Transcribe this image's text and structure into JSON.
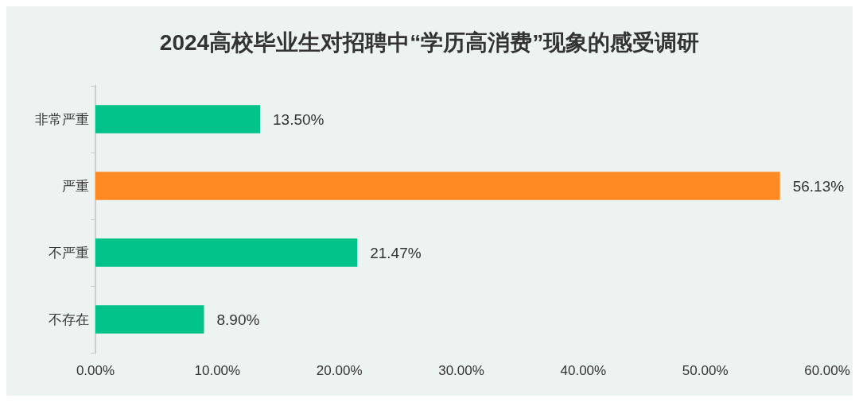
{
  "chart_data": {
    "type": "bar",
    "orientation": "horizontal",
    "title": "2024高校毕业生对招聘中“学历高消费”现象的感受调研",
    "categories": [
      "非常严重",
      "严重",
      "不严重",
      "不存在"
    ],
    "values": [
      13.5,
      56.13,
      21.47,
      8.9
    ],
    "colors": [
      "#00c389",
      "#ff8a24",
      "#00c389",
      "#00c389"
    ],
    "value_labels": [
      "13.50%",
      "56.13%",
      "21.47%",
      "8.90%"
    ],
    "xlim": [
      0,
      60
    ],
    "xticks": [
      {
        "value": 0,
        "label": "0.00%"
      },
      {
        "value": 10,
        "label": "10.00%"
      },
      {
        "value": 20,
        "label": "20.00%"
      },
      {
        "value": 30,
        "label": "30.00%"
      },
      {
        "value": 40,
        "label": "40.00%"
      },
      {
        "value": 50,
        "label": "50.00%"
      },
      {
        "value": 60,
        "label": "60.00%"
      }
    ],
    "grid": false
  }
}
